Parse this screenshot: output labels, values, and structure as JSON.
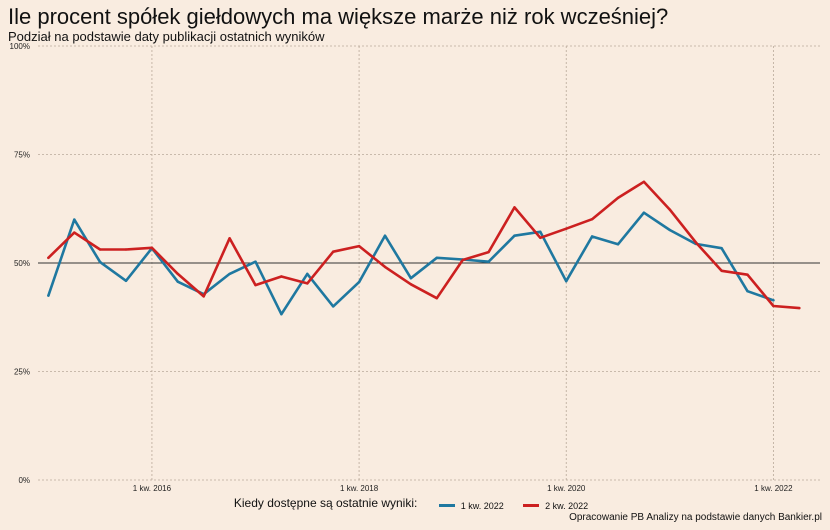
{
  "title": "Ile procent spółek giełdowych ma większe marże niż rok wcześniej?",
  "subtitle": "Podział na podstawie daty publikacji ostatnich wyników",
  "caption": "Opracowanie PB Analizy na podstawie danych Bankier.pl",
  "colors": {
    "background": "#f9ece0",
    "series1": "#1f78a0",
    "series2": "#cc2020",
    "grid": "#aaa",
    "ref": "#444"
  },
  "chart_data": {
    "type": "line",
    "title": "Ile procent spółek giełdowych ma większe marże niż rok wcześniej?",
    "subtitle": "Podział na podstawie daty publikacji ostatnich wyników",
    "xlabel": "",
    "ylabel": "",
    "ylim": [
      0,
      100
    ],
    "yticks": [
      "0%",
      "25%",
      "50%",
      "75%",
      "100%"
    ],
    "ytick_values": [
      0,
      25,
      50,
      75,
      100
    ],
    "xticks": [
      "1 kw. 2016",
      "1 kw. 2018",
      "1 kw. 2020",
      "1 kw. 2022"
    ],
    "xtick_values": [
      2016.0,
      2018.0,
      2020.0,
      2022.0
    ],
    "xlim": [
      2014.9,
      2022.45
    ],
    "reference_line": 50,
    "grid": "dotted at ticks",
    "legend": {
      "title": "Kiedy dostępne są ostatnie wyniki:",
      "position": "bottom"
    },
    "series": [
      {
        "name": "1 kw. 2022",
        "color": "#1f78a0",
        "x": [
          2015.0,
          2015.25,
          2015.5,
          2015.75,
          2016.0,
          2016.25,
          2016.5,
          2016.75,
          2017.0,
          2017.25,
          2017.5,
          2017.75,
          2018.0,
          2018.25,
          2018.5,
          2018.75,
          2019.0,
          2019.25,
          2019.5,
          2019.75,
          2020.0,
          2020.25,
          2020.5,
          2020.75,
          2021.0,
          2021.25,
          2021.5,
          2021.75,
          2022.0
        ],
        "y": [
          42.5,
          60.0,
          50.2,
          45.9,
          53.4,
          45.7,
          42.8,
          47.5,
          50.3,
          38.2,
          47.5,
          40.0,
          45.6,
          56.3,
          46.5,
          51.2,
          50.8,
          50.3,
          56.3,
          57.2,
          45.8,
          56.1,
          54.3,
          61.6,
          57.6,
          54.4,
          53.4,
          43.5,
          41.4
        ]
      },
      {
        "name": "2 kw. 2022",
        "color": "#cc2020",
        "x": [
          2015.0,
          2015.25,
          2015.5,
          2015.75,
          2016.0,
          2016.25,
          2016.5,
          2016.75,
          2017.0,
          2017.25,
          2017.5,
          2017.75,
          2018.0,
          2018.25,
          2018.5,
          2018.75,
          2019.0,
          2019.25,
          2019.5,
          2019.75,
          2020.0,
          2020.25,
          2020.5,
          2020.75,
          2021.0,
          2021.25,
          2021.5,
          2021.75,
          2022.0,
          2022.25
        ],
        "y": [
          51.2,
          57.0,
          53.1,
          53.1,
          53.5,
          47.5,
          42.3,
          55.7,
          44.9,
          46.9,
          45.3,
          52.6,
          53.9,
          49.1,
          45.1,
          41.9,
          50.7,
          52.5,
          62.8,
          55.8,
          57.9,
          60.1,
          65.0,
          68.7,
          62.3,
          54.8,
          48.2,
          47.3,
          40.1,
          39.6
        ]
      }
    ]
  }
}
